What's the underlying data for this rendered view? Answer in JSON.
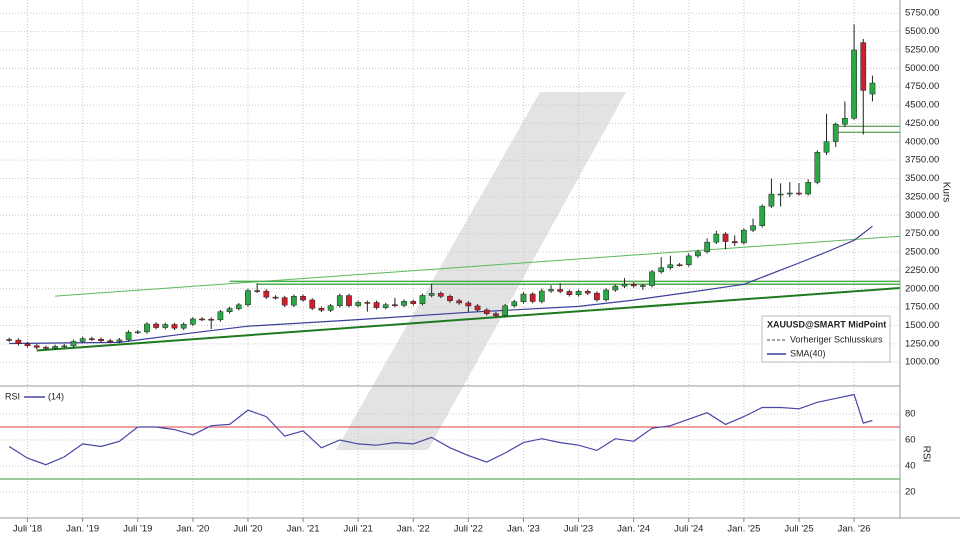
{
  "chart_data": [
    {
      "type": "candlestick",
      "y_label": "Kurs",
      "xlim": [
        "2018-04",
        "2026-06"
      ],
      "ylim": [
        690,
        5930
      ],
      "yticks": [
        {
          "value": 1000,
          "label": "1000.00"
        },
        {
          "value": 1250,
          "label": "1250.00"
        },
        {
          "value": 1500,
          "label": "1500.00"
        },
        {
          "value": 1750,
          "label": "1750.00"
        },
        {
          "value": 2000,
          "label": "2000.00"
        },
        {
          "value": 2250,
          "label": "2250.00"
        },
        {
          "value": 2500,
          "label": "2500.00"
        },
        {
          "value": 2750,
          "label": "2750.00"
        },
        {
          "value": 3000,
          "label": "3000.00"
        },
        {
          "value": 3250,
          "label": "3250.00"
        },
        {
          "value": 3500,
          "label": "3500.00"
        },
        {
          "value": 3750,
          "label": "3750.00"
        },
        {
          "value": 4000,
          "label": "4000.00"
        },
        {
          "value": 4250,
          "label": "4250.00"
        },
        {
          "value": 4500,
          "label": "4500.00"
        },
        {
          "value": 4750,
          "label": "4750.00"
        },
        {
          "value": 5000,
          "label": "5000.00"
        },
        {
          "value": 5250,
          "label": "5250.00"
        },
        {
          "value": 5500,
          "label": "5500.00"
        },
        {
          "value": 5750,
          "label": "5750.00"
        }
      ],
      "grid": true,
      "x": [
        "2018-05",
        "2018-06",
        "2018-07",
        "2018-08",
        "2018-09",
        "2018-10",
        "2018-11",
        "2018-12",
        "2019-01",
        "2019-02",
        "2019-03",
        "2019-04",
        "2019-05",
        "2019-06",
        "2019-07",
        "2019-08",
        "2019-09",
        "2019-10",
        "2019-11",
        "2019-12",
        "2020-01",
        "2020-02",
        "2020-03",
        "2020-04",
        "2020-05",
        "2020-06",
        "2020-07",
        "2020-08",
        "2020-09",
        "2020-10",
        "2020-11",
        "2020-12",
        "2021-01",
        "2021-02",
        "2021-03",
        "2021-04",
        "2021-05",
        "2021-06",
        "2021-07",
        "2021-08",
        "2021-09",
        "2021-10",
        "2021-11",
        "2021-12",
        "2022-01",
        "2022-02",
        "2022-03",
        "2022-04",
        "2022-05",
        "2022-06",
        "2022-07",
        "2022-08",
        "2022-09",
        "2022-10",
        "2022-11",
        "2022-12",
        "2023-01",
        "2023-02",
        "2023-03",
        "2023-04",
        "2023-05",
        "2023-06",
        "2023-07",
        "2023-08",
        "2023-09",
        "2023-10",
        "2023-11",
        "2023-12",
        "2024-01",
        "2024-02",
        "2024-03",
        "2024-04",
        "2024-05",
        "2024-06",
        "2024-07",
        "2024-08",
        "2024-09",
        "2024-10",
        "2024-11",
        "2024-12",
        "2025-01",
        "2025-02",
        "2025-03",
        "2025-04",
        "2025-05",
        "2025-06",
        "2025-07",
        "2025-08",
        "2025-09",
        "2025-10",
        "2025-11",
        "2025-12",
        "2026-01",
        "2026-02",
        "2026-03"
      ],
      "candles": {
        "name": "XAUUSD@SMART MidPoint",
        "up_color": "#2aa845",
        "down_color": "#cc1f2d",
        "open": [
          1310,
          1300,
          1253,
          1224,
          1202,
          1192,
          1215,
          1222,
          1282,
          1321,
          1313,
          1292,
          1284,
          1305,
          1409,
          1413,
          1520,
          1472,
          1513,
          1464,
          1517,
          1589,
          1585,
          1577,
          1687,
          1730,
          1781,
          1975,
          1968,
          1886,
          1879,
          1777,
          1898,
          1847,
          1734,
          1707,
          1769,
          1907,
          1770,
          1814,
          1813,
          1743,
          1783,
          1774,
          1829,
          1797,
          1909,
          1937,
          1897,
          1837,
          1807,
          1766,
          1711,
          1660,
          1634,
          1768,
          1824,
          1928,
          1827,
          1969,
          1990,
          1963,
          1919,
          1965,
          1940,
          1849,
          1983,
          2036,
          2063,
          2039,
          2044,
          2230,
          2286,
          2327,
          2326,
          2447,
          2503,
          2634,
          2744,
          2643,
          2625,
          2798,
          2858,
          3124,
          3288,
          3289,
          3303,
          3290,
          3448,
          3858,
          4003,
          4239,
          4320,
          5350,
          4650
        ],
        "high": [
          1335,
          1325,
          1278,
          1249,
          1227,
          1240,
          1247,
          1307,
          1346,
          1346,
          1338,
          1317,
          1330,
          1434,
          1438,
          1545,
          1545,
          1538,
          1538,
          1542,
          1614,
          1614,
          1610,
          1712,
          1755,
          1806,
          2000,
          2075,
          1993,
          1911,
          1904,
          1923,
          1923,
          1872,
          1759,
          1794,
          1932,
          1932,
          1839,
          1839,
          1838,
          1808,
          1877,
          1854,
          1854,
          1934,
          2070,
          1962,
          1922,
          1862,
          1832,
          1791,
          1736,
          1685,
          1793,
          1849,
          1953,
          1953,
          2003,
          2049,
          2077,
          1988,
          1990,
          1990,
          1965,
          2008,
          2061,
          2146,
          2088,
          2069,
          2255,
          2431,
          2450,
          2352,
          2483,
          2531,
          2685,
          2790,
          2769,
          2726,
          2823,
          2956,
          3149,
          3500,
          3435,
          3452,
          3439,
          3490,
          3883,
          4380,
          4264,
          4550,
          5600,
          5400,
          4900
        ],
        "low": [
          1275,
          1228,
          1199,
          1177,
          1167,
          1167,
          1190,
          1197,
          1257,
          1288,
          1267,
          1259,
          1259,
          1280,
          1384,
          1388,
          1447,
          1447,
          1439,
          1439,
          1492,
          1560,
          1452,
          1552,
          1662,
          1705,
          1756,
          1943,
          1861,
          1854,
          1752,
          1752,
          1822,
          1709,
          1682,
          1682,
          1744,
          1745,
          1745,
          1688,
          1718,
          1718,
          1749,
          1749,
          1772,
          1772,
          1884,
          1872,
          1812,
          1782,
          1681,
          1686,
          1635,
          1609,
          1609,
          1743,
          1799,
          1802,
          1802,
          1944,
          1938,
          1894,
          1894,
          1915,
          1824,
          1824,
          1958,
          2011,
          2014,
          1984,
          2019,
          2205,
          2261,
          2301,
          2301,
          2422,
          2478,
          2609,
          2536,
          2583,
          2600,
          2773,
          2833,
          3100,
          3120,
          3247,
          3268,
          3268,
          3423,
          3820,
          3930,
          4200,
          4300,
          4100,
          4550
        ],
        "close": [
          1300,
          1253,
          1224,
          1202,
          1192,
          1215,
          1222,
          1282,
          1321,
          1313,
          1292,
          1284,
          1305,
          1409,
          1413,
          1520,
          1472,
          1513,
          1464,
          1517,
          1589,
          1585,
          1577,
          1687,
          1730,
          1781,
          1975,
          1968,
          1886,
          1879,
          1777,
          1898,
          1847,
          1734,
          1707,
          1769,
          1907,
          1770,
          1814,
          1813,
          1743,
          1783,
          1774,
          1829,
          1797,
          1909,
          1937,
          1897,
          1837,
          1807,
          1766,
          1711,
          1660,
          1634,
          1768,
          1824,
          1928,
          1827,
          1969,
          1990,
          1963,
          1919,
          1965,
          1940,
          1849,
          1983,
          2036,
          2063,
          2039,
          2044,
          2230,
          2286,
          2327,
          2326,
          2447,
          2503,
          2634,
          2744,
          2643,
          2625,
          2798,
          2858,
          3124,
          3288,
          3289,
          3303,
          3290,
          3448,
          3858,
          4003,
          4239,
          4320,
          5250,
          4700,
          4800
        ]
      },
      "series": [
        {
          "name": "Vorheriger Schlusskurs",
          "color": "#444444",
          "dash": true
        },
        {
          "name": "SMA(40)",
          "color": "#3d3d9e",
          "x": [
            "2018-05",
            "2019-05",
            "2020-01",
            "2020-07",
            "2021-07",
            "2022-07",
            "2023-07",
            "2024-01",
            "2024-07",
            "2025-01",
            "2025-07",
            "2025-10",
            "2026-01",
            "2026-03"
          ],
          "values": [
            1255,
            1270,
            1400,
            1490,
            1580,
            1680,
            1760,
            1845,
            1950,
            2060,
            2350,
            2500,
            2660,
            2850
          ]
        }
      ],
      "trendlines": [
        {
          "color": "#5cb85c",
          "width": 1,
          "x": [
            "2018-10",
            "2026-06"
          ],
          "values": [
            1900,
            2715
          ]
        },
        {
          "color": "#1e7a1e",
          "width": 2,
          "x": [
            "2018-08",
            "2026-06"
          ],
          "values": [
            1160,
            2010
          ]
        },
        {
          "color": "#4cae4c",
          "width": 1.5,
          "x": [
            "2020-05",
            "2026-06"
          ],
          "values": [
            2100,
            2100
          ]
        },
        {
          "color": "#4cae4c",
          "width": 1.5,
          "x": [
            "2020-08",
            "2026-06"
          ],
          "values": [
            2060,
            2060
          ]
        },
        {
          "color": "#2e8b2e",
          "width": 1,
          "x": [
            "2025-11",
            "2026-06"
          ],
          "values": [
            4212,
            4212
          ]
        },
        {
          "color": "#2e8b2e",
          "width": 1,
          "x": [
            "2025-11",
            "2026-06"
          ],
          "values": [
            4130,
            4130
          ]
        }
      ]
    },
    {
      "type": "line",
      "title": "RSI",
      "y_label": "RSI",
      "xlim": [
        "2018-04",
        "2026-06"
      ],
      "ylim": [
        0,
        100
      ],
      "yticks": [
        20,
        40,
        60,
        80
      ],
      "grid": true,
      "xticks": [
        {
          "value": "2018-07",
          "label": "Juli '18"
        },
        {
          "value": "2019-01",
          "label": "Jan. '19"
        },
        {
          "value": "2019-07",
          "label": "Juli '19"
        },
        {
          "value": "2020-01",
          "label": "Jan. '20"
        },
        {
          "value": "2020-07",
          "label": "Juli '20"
        },
        {
          "value": "2021-01",
          "label": "Jan. '21"
        },
        {
          "value": "2021-07",
          "label": "Juli '21"
        },
        {
          "value": "2022-01",
          "label": "Jan. '22"
        },
        {
          "value": "2022-07",
          "label": "Juli '22"
        },
        {
          "value": "2023-01",
          "label": "Jan. '23"
        },
        {
          "value": "2023-07",
          "label": "Juli '23"
        },
        {
          "value": "2024-01",
          "label": "Jan. '24"
        },
        {
          "value": "2024-07",
          "label": "Juli '24"
        },
        {
          "value": "2025-01",
          "label": "Jan. '25"
        },
        {
          "value": "2025-07",
          "label": "Juli '25"
        },
        {
          "value": "2026-01",
          "label": "Jan. '26"
        }
      ],
      "series": [
        {
          "name": "(14)",
          "color": "#4747a6",
          "x": [
            "2018-05",
            "2018-07",
            "2018-09",
            "2018-11",
            "2019-01",
            "2019-03",
            "2019-05",
            "2019-07",
            "2019-09",
            "2019-11",
            "2020-01",
            "2020-03",
            "2020-05",
            "2020-07",
            "2020-09",
            "2020-11",
            "2021-01",
            "2021-03",
            "2021-05",
            "2021-07",
            "2021-09",
            "2021-11",
            "2022-01",
            "2022-03",
            "2022-05",
            "2022-07",
            "2022-09",
            "2022-11",
            "2023-01",
            "2023-03",
            "2023-05",
            "2023-07",
            "2023-09",
            "2023-11",
            "2024-01",
            "2024-03",
            "2024-05",
            "2024-07",
            "2024-09",
            "2024-11",
            "2025-01",
            "2025-03",
            "2025-05",
            "2025-07",
            "2025-09",
            "2025-11",
            "2026-01",
            "2026-02",
            "2026-03"
          ],
          "values": [
            55,
            46,
            41,
            47,
            57,
            55,
            59,
            70,
            70,
            68,
            64,
            71,
            72,
            83,
            78,
            63,
            67,
            54,
            60,
            57,
            56,
            58,
            57,
            62,
            54,
            48,
            43,
            50,
            58,
            61,
            58,
            56,
            52,
            61,
            59,
            69,
            71,
            76,
            81,
            72,
            78,
            85,
            85,
            84,
            89,
            92,
            95,
            73,
            75
          ]
        }
      ],
      "hlines": [
        {
          "value": 70,
          "color": "#e04040"
        },
        {
          "value": 30,
          "color": "#3a9a3a"
        }
      ]
    }
  ]
}
